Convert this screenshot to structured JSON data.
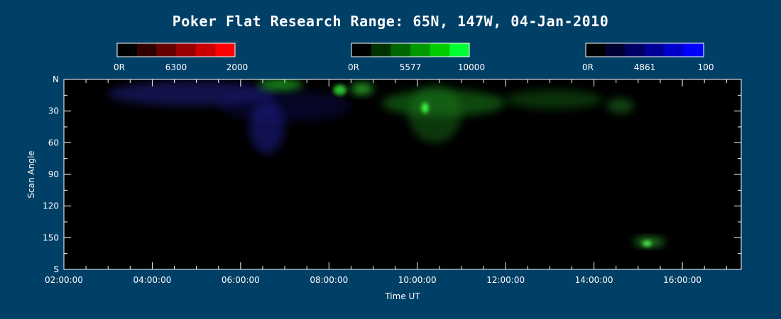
{
  "chart_data": {
    "type": "heatmap",
    "title": "Poker Flat Research Range: 65N, 147W, 04-Jan-2010",
    "xlabel": "Time UT",
    "ylabel": "Scan Angle",
    "xlim": [
      "02:00:00",
      "17:20:00"
    ],
    "ylim": [
      0,
      180
    ],
    "x_ticks": [
      "02:00:00",
      "04:00:00",
      "06:00:00",
      "08:00:00",
      "10:00:00",
      "12:00:00",
      "14:00:00",
      "16:00:00"
    ],
    "x_tick_hours": [
      2,
      4,
      6,
      8,
      10,
      12,
      14,
      16
    ],
    "y_ticks": [
      "N",
      "30",
      "60",
      "90",
      "120",
      "150",
      "S"
    ],
    "y_tick_values": [
      0,
      30,
      60,
      90,
      120,
      150,
      180
    ],
    "colorbars": [
      {
        "name": "6300",
        "min_label": "0R",
        "max_label": "2000",
        "colors": [
          "#000000",
          "#330000",
          "#660000",
          "#990000",
          "#cc0000",
          "#ff0000"
        ]
      },
      {
        "name": "5577",
        "min_label": "0R",
        "max_label": "10000",
        "colors": [
          "#000000",
          "#003300",
          "#006600",
          "#009900",
          "#00cc00",
          "#00ff33"
        ]
      },
      {
        "name": "4861",
        "min_label": "0R",
        "max_label": "100",
        "colors": [
          "#000000",
          "#000033",
          "#000066",
          "#000099",
          "#0000cc",
          "#0000ff"
        ]
      }
    ],
    "emission_features": [
      {
        "channel": "4861",
        "color": "#2a2aa8",
        "hours": [
          3.0,
          6.8
        ],
        "angles": [
          2,
          25
        ],
        "intensity": 0.45
      },
      {
        "channel": "4861",
        "color": "#2222a0",
        "hours": [
          6.2,
          7.0
        ],
        "angles": [
          20,
          70
        ],
        "intensity": 0.5
      },
      {
        "channel": "4861",
        "color": "#181880",
        "hours": [
          5.5,
          8.5
        ],
        "angles": [
          10,
          40
        ],
        "intensity": 0.3
      },
      {
        "channel": "5577",
        "color": "#20b020",
        "hours": [
          6.4,
          7.4
        ],
        "angles": [
          0,
          10
        ],
        "intensity": 0.8
      },
      {
        "channel": "5577",
        "color": "#30d030",
        "hours": [
          8.1,
          8.4
        ],
        "angles": [
          5,
          15
        ],
        "intensity": 0.9
      },
      {
        "channel": "5577",
        "color": "#30c030",
        "hours": [
          8.5,
          9.0
        ],
        "angles": [
          4,
          14
        ],
        "intensity": 0.85
      },
      {
        "channel": "5577",
        "color": "#1f8f1f",
        "hours": [
          9.2,
          12.0
        ],
        "angles": [
          10,
          35
        ],
        "intensity": 0.5
      },
      {
        "channel": "5577",
        "color": "#1a7a1a",
        "hours": [
          9.8,
          11.0
        ],
        "angles": [
          5,
          60
        ],
        "intensity": 0.45
      },
      {
        "channel": "5577",
        "color": "#44ff44",
        "hours": [
          10.1,
          10.25
        ],
        "angles": [
          22,
          32
        ],
        "intensity": 1.0
      },
      {
        "channel": "5577",
        "color": "#1f8f1f",
        "hours": [
          12.0,
          14.2
        ],
        "angles": [
          10,
          28
        ],
        "intensity": 0.35
      },
      {
        "channel": "5577",
        "color": "#2a9a2a",
        "hours": [
          14.3,
          14.9
        ],
        "angles": [
          18,
          32
        ],
        "intensity": 0.45
      },
      {
        "channel": "5577",
        "color": "#30c030",
        "hours": [
          14.9,
          15.6
        ],
        "angles": [
          150,
          158
        ],
        "intensity": 0.7
      },
      {
        "channel": "5577",
        "color": "#55ff55",
        "hours": [
          15.1,
          15.3
        ],
        "angles": [
          153,
          158
        ],
        "intensity": 1.0
      }
    ]
  }
}
